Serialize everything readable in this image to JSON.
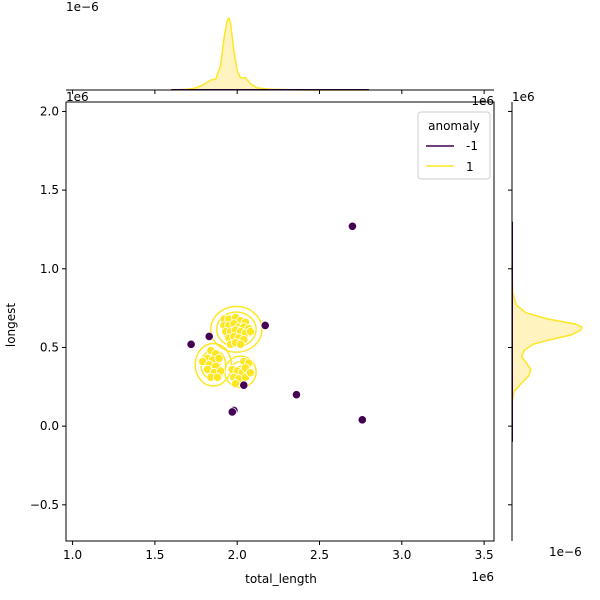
{
  "chart_data": {
    "type": "scatter",
    "subtype": "jointplot",
    "xlabel": "total_length",
    "ylabel": "longest",
    "x_offset_text": "1e6",
    "y_offset_text": "1e6",
    "y_offset_text_corner": "1e6",
    "top_marginal_offset_text": "1e−6",
    "right_marginal_offset_text": "1e−6",
    "right_marginal_top_text": "1e6",
    "xlim": [
      0.96,
      3.56
    ],
    "ylim": [
      -0.73,
      2.06
    ],
    "x_ticks": [
      1.0,
      1.5,
      2.0,
      2.5,
      3.0,
      3.5
    ],
    "x_tick_labels": [
      "1.0",
      "1.5",
      "2.0",
      "2.5",
      "3.0",
      "3.5"
    ],
    "y_ticks": [
      -0.5,
      0.0,
      0.5,
      1.0,
      1.5,
      2.0
    ],
    "y_tick_labels": [
      "−0.5",
      "0.0",
      "0.5",
      "1.0",
      "1.5",
      "2.0"
    ],
    "grid": false,
    "legend": {
      "title": "anomaly",
      "placement": "top-right",
      "entries": [
        {
          "label": "-1",
          "color": "#440154"
        },
        {
          "label": "1",
          "color": "#fde725"
        }
      ]
    },
    "series": [
      {
        "name": "-1",
        "color": "#440154",
        "points": [
          [
            2.7,
            1.27
          ],
          [
            2.17,
            0.64
          ],
          [
            1.83,
            0.57
          ],
          [
            1.72,
            0.52
          ],
          [
            2.04,
            0.26
          ],
          [
            2.36,
            0.2
          ],
          [
            2.76,
            0.04
          ],
          [
            1.98,
            0.1
          ],
          [
            1.97,
            0.09
          ]
        ]
      },
      {
        "name": "1",
        "color": "#fde725",
        "points": [
          [
            1.92,
            0.68
          ],
          [
            1.95,
            0.68
          ],
          [
            1.99,
            0.69
          ],
          [
            2.02,
            0.67
          ],
          [
            2.05,
            0.66
          ],
          [
            1.92,
            0.64
          ],
          [
            1.95,
            0.64
          ],
          [
            1.98,
            0.65
          ],
          [
            2.01,
            0.63
          ],
          [
            2.04,
            0.63
          ],
          [
            2.07,
            0.62
          ],
          [
            1.93,
            0.6
          ],
          [
            1.96,
            0.6
          ],
          [
            1.99,
            0.61
          ],
          [
            2.02,
            0.6
          ],
          [
            2.05,
            0.59
          ],
          [
            2.08,
            0.6
          ],
          [
            1.95,
            0.56
          ],
          [
            1.98,
            0.57
          ],
          [
            2.01,
            0.56
          ],
          [
            2.04,
            0.55
          ],
          [
            1.96,
            0.52
          ],
          [
            1.99,
            0.53
          ],
          [
            2.02,
            0.52
          ],
          [
            1.84,
            0.48
          ],
          [
            1.87,
            0.46
          ],
          [
            1.82,
            0.43
          ],
          [
            1.85,
            0.42
          ],
          [
            1.89,
            0.43
          ],
          [
            1.79,
            0.41
          ],
          [
            1.83,
            0.39
          ],
          [
            1.87,
            0.38
          ],
          [
            1.82,
            0.36
          ],
          [
            1.86,
            0.34
          ],
          [
            1.9,
            0.35
          ],
          [
            1.84,
            0.31
          ],
          [
            1.88,
            0.31
          ],
          [
            1.97,
            0.36
          ],
          [
            2.0,
            0.35
          ],
          [
            2.03,
            0.34
          ],
          [
            1.98,
            0.31
          ],
          [
            2.01,
            0.3
          ],
          [
            2.05,
            0.31
          ],
          [
            1.99,
            0.27
          ],
          [
            2.04,
            0.41
          ],
          [
            2.07,
            0.4
          ],
          [
            2.05,
            0.37
          ],
          [
            2.08,
            0.34
          ]
        ]
      }
    ],
    "kde_contours": [
      {
        "color": "#fde725",
        "cx": 1.995,
        "cy": 0.615,
        "rx": 0.155,
        "ry": 0.145
      },
      {
        "color": "#fde725",
        "cx": 1.995,
        "cy": 0.615,
        "rx": 0.12,
        "ry": 0.11
      },
      {
        "color": "#fde725",
        "cx": 1.995,
        "cy": 0.615,
        "rx": 0.085,
        "ry": 0.08
      },
      {
        "color": "#fde725",
        "cx": 1.995,
        "cy": 0.615,
        "rx": 0.05,
        "ry": 0.05
      },
      {
        "color": "#fde725",
        "cx": 1.855,
        "cy": 0.39,
        "rx": 0.11,
        "ry": 0.135
      },
      {
        "color": "#fde725",
        "cx": 1.855,
        "cy": 0.39,
        "rx": 0.075,
        "ry": 0.095
      },
      {
        "color": "#fde725",
        "cx": 1.855,
        "cy": 0.39,
        "rx": 0.04,
        "ry": 0.055
      },
      {
        "color": "#fde725",
        "cx": 2.02,
        "cy": 0.345,
        "rx": 0.095,
        "ry": 0.1
      },
      {
        "color": "#fde725",
        "cx": 2.02,
        "cy": 0.345,
        "rx": 0.06,
        "ry": 0.065
      },
      {
        "color": "#fde725",
        "cx": 2.02,
        "cy": 0.345,
        "rx": 0.03,
        "ry": 0.035
      }
    ],
    "marginal_x_kde": {
      "color": "#fde725",
      "fill": "#fff3bf",
      "x": [
        1.6,
        1.7,
        1.75,
        1.8,
        1.84,
        1.87,
        1.9,
        1.92,
        1.94,
        1.95,
        1.96,
        1.98,
        2.0,
        2.02,
        2.05,
        2.08,
        2.12,
        2.2,
        2.4,
        2.8
      ],
      "density": [
        0.0,
        0.01,
        0.03,
        0.08,
        0.14,
        0.15,
        0.35,
        0.72,
        0.97,
        1.0,
        0.92,
        0.55,
        0.27,
        0.17,
        0.17,
        0.09,
        0.03,
        0.01,
        0.0,
        0.0
      ]
    },
    "marginal_y_kde": {
      "color": "#fde725",
      "fill": "#fff3bf",
      "y": [
        0.15,
        0.22,
        0.28,
        0.32,
        0.36,
        0.4,
        0.44,
        0.48,
        0.52,
        0.55,
        0.58,
        0.61,
        0.63,
        0.65,
        0.68,
        0.72,
        0.77,
        0.85,
        1.0
      ],
      "density": [
        0.0,
        0.03,
        0.15,
        0.24,
        0.27,
        0.21,
        0.14,
        0.17,
        0.3,
        0.55,
        0.85,
        0.98,
        1.0,
        0.9,
        0.52,
        0.2,
        0.06,
        0.01,
        0.0
      ]
    },
    "marginal_other_series_color": "#440154"
  }
}
